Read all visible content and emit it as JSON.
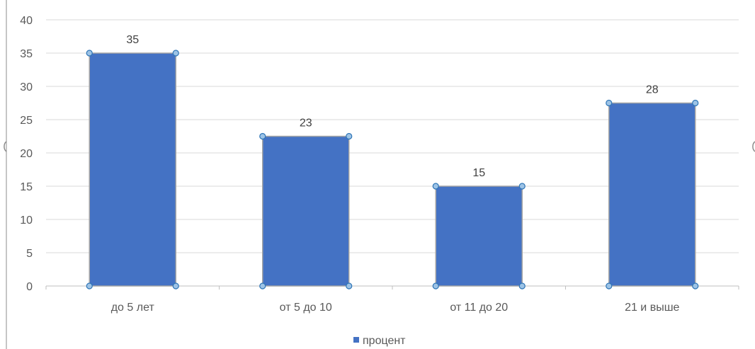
{
  "chart_data": {
    "type": "bar",
    "categories": [
      "до 5 лет",
      "от 5 до 10",
      "от 11 до 20",
      "21 и выше"
    ],
    "series": [
      {
        "name": "процент",
        "values": [
          35,
          22.5,
          15,
          27.5
        ],
        "data_labels": [
          "35",
          "23",
          "15",
          "28"
        ],
        "color": "#4472C4"
      }
    ],
    "ylim": [
      0,
      40
    ],
    "yticks": [
      0,
      5,
      10,
      15,
      20,
      25,
      30,
      35,
      40
    ],
    "grid": true,
    "legend_position": "bottom",
    "selected": true,
    "colors": {
      "bar": "#4472C4",
      "bar_outline": "#A5A5A5",
      "handle_fill": "#9DC3E6",
      "handle_stroke": "#2E75B6",
      "grid": "#D9D9D9",
      "axis": "#BFBFBF"
    }
  }
}
